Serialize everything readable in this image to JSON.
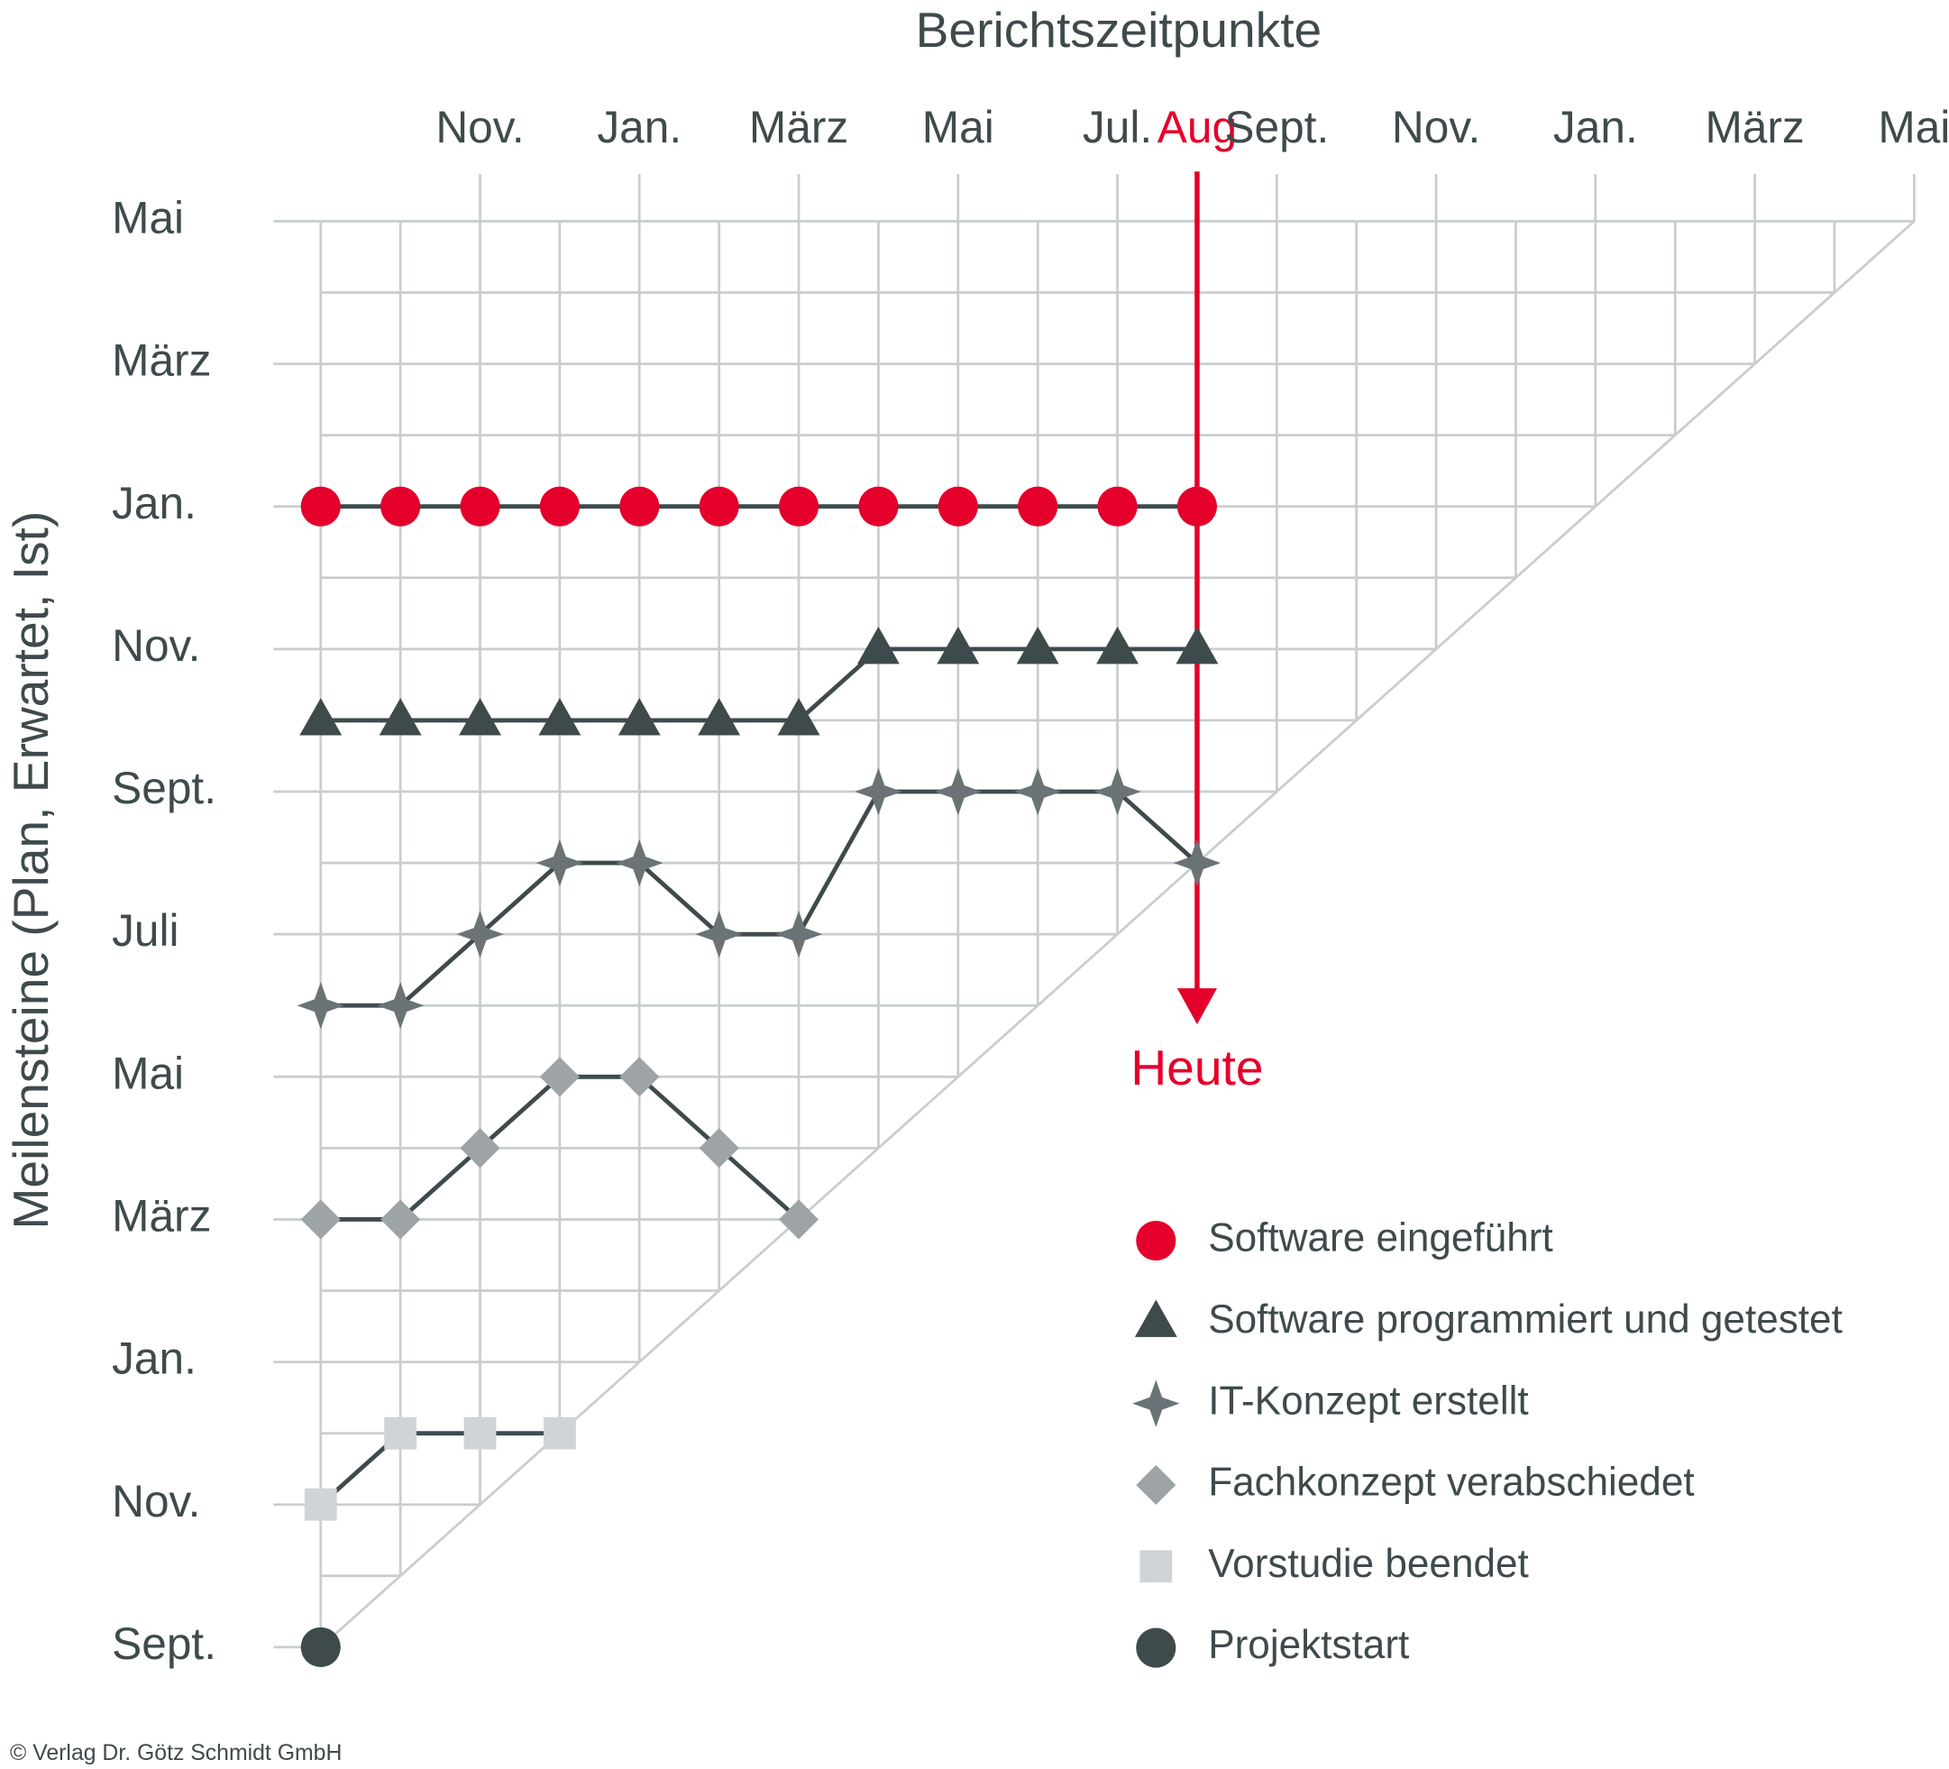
{
  "chart_data": {
    "type": "milestone-trend",
    "title": "Berichtszeitpunkte",
    "y_label": "Meilensteine (Plan, Erwartet, Ist)",
    "xlim": [
      0,
      20
    ],
    "ylim": [
      0,
      20
    ],
    "xticks": [
      {
        "value": 2,
        "label": "Nov."
      },
      {
        "value": 4,
        "label": "Jan."
      },
      {
        "value": 6,
        "label": "März"
      },
      {
        "value": 8,
        "label": "Mai"
      },
      {
        "value": 10,
        "label": "Jul."
      },
      {
        "value": 11,
        "label": "Aug"
      },
      {
        "value": 12,
        "label": "Sept."
      },
      {
        "value": 14,
        "label": "Nov."
      },
      {
        "value": 16,
        "label": "Jan."
      },
      {
        "value": 18,
        "label": "März"
      },
      {
        "value": 20,
        "label": "Mai"
      }
    ],
    "yticks": [
      {
        "value": 0,
        "label": "Sept."
      },
      {
        "value": 2,
        "label": "Nov."
      },
      {
        "value": 4,
        "label": "Jan."
      },
      {
        "value": 6,
        "label": "März"
      },
      {
        "value": 8,
        "label": "Mai"
      },
      {
        "value": 10,
        "label": "Juli"
      },
      {
        "value": 12,
        "label": "Sept."
      },
      {
        "value": 14,
        "label": "Nov."
      },
      {
        "value": 16,
        "label": "Jan."
      },
      {
        "value": 18,
        "label": "März"
      },
      {
        "value": 20,
        "label": "Mai"
      }
    ],
    "today": {
      "x": 11,
      "label": "Heute",
      "color": "#e4002b"
    },
    "line_color": "#3f4a4c",
    "series": [
      {
        "name": "Software eingeführt",
        "marker": "circle",
        "color": "#e4002b",
        "x": [
          0,
          1,
          2,
          3,
          4,
          5,
          6,
          7,
          8,
          9,
          10,
          11
        ],
        "values": [
          16,
          16,
          16,
          16,
          16,
          16,
          16,
          16,
          16,
          16,
          16,
          16
        ]
      },
      {
        "name": "Software programmiert und getestet",
        "marker": "triangle",
        "color": "#3f4a4c",
        "x": [
          0,
          1,
          2,
          3,
          4,
          5,
          6,
          7,
          8,
          9,
          10,
          11
        ],
        "values": [
          13,
          13,
          13,
          13,
          13,
          13,
          13,
          14,
          14,
          14,
          14,
          14
        ]
      },
      {
        "name": "IT-Konzept erstellt",
        "marker": "star",
        "color": "#6a7375",
        "x": [
          0,
          1,
          2,
          3,
          4,
          5,
          6,
          7,
          8,
          9,
          10,
          11
        ],
        "values": [
          9,
          9,
          10,
          11,
          11,
          10,
          10,
          12,
          12,
          12,
          12,
          11
        ]
      },
      {
        "name": "Fachkonzept verabschiedet",
        "marker": "diamond",
        "color": "#9ea4a6",
        "x": [
          0,
          1,
          2,
          3,
          4,
          5,
          6
        ],
        "values": [
          6,
          6,
          7,
          8,
          8,
          7,
          6
        ]
      },
      {
        "name": "Vorstudie beendet",
        "marker": "square",
        "color": "#d0d4d6",
        "x": [
          0,
          1,
          2,
          3
        ],
        "values": [
          2,
          3,
          3,
          3
        ]
      },
      {
        "name": "Projektstart",
        "marker": "circle",
        "color": "#3f4a4c",
        "x": [
          0
        ],
        "values": [
          0
        ]
      }
    ],
    "footer": "© Verlag Dr. Götz Schmidt GmbH"
  }
}
